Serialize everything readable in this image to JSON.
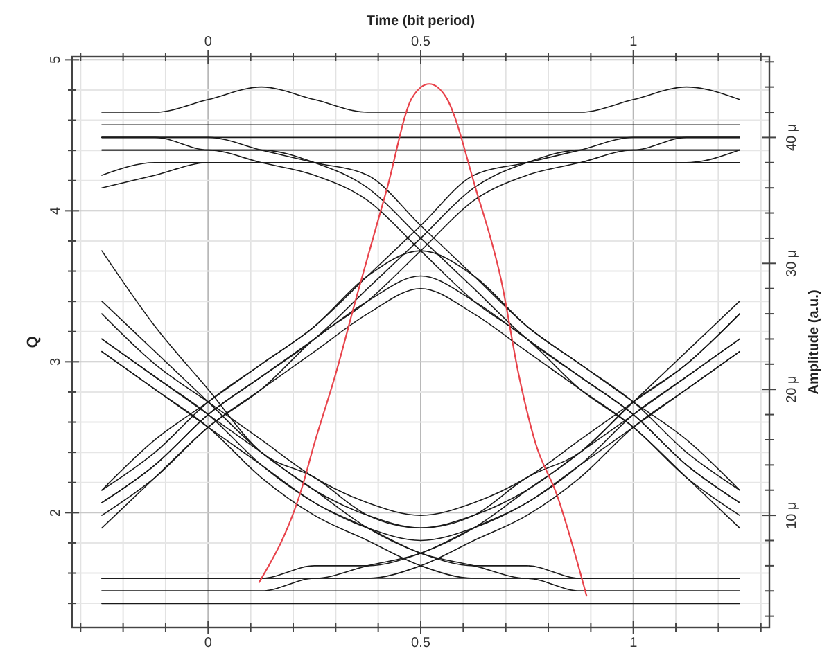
{
  "chart_data": {
    "type": "line",
    "x2label": "Time (bit period)",
    "ylabel": "Q",
    "y2label": "Amplitude (a.u.)",
    "xlim": [
      -0.32,
      1.32
    ],
    "xticks": [
      {
        "value": -0.3,
        "label": null
      },
      {
        "value": -0.2,
        "label": null
      },
      {
        "value": -0.1,
        "label": null
      },
      0,
      {
        "value": 0.1,
        "label": null
      },
      {
        "value": 0.2,
        "label": null
      },
      {
        "value": 0.3,
        "label": null
      },
      {
        "value": 0.4,
        "label": null
      },
      0.5,
      {
        "value": 0.6,
        "label": null
      },
      {
        "value": 0.7,
        "label": null
      },
      {
        "value": 0.8,
        "label": null
      },
      {
        "value": 0.9,
        "label": null
      },
      1,
      {
        "value": 1.1,
        "label": null
      },
      {
        "value": 1.2,
        "label": null
      },
      {
        "value": 1.3,
        "label": null
      }
    ],
    "x2lim": [
      -0.32,
      1.32
    ],
    "x2ticks": [
      {
        "value": -0.3,
        "label": null
      },
      {
        "value": -0.2,
        "label": null
      },
      {
        "value": -0.1,
        "label": null
      },
      0,
      {
        "value": 0.1,
        "label": null
      },
      {
        "value": 0.2,
        "label": null
      },
      {
        "value": 0.3,
        "label": null
      },
      {
        "value": 0.4,
        "label": null
      },
      0.5,
      {
        "value": 0.6,
        "label": null
      },
      {
        "value": 0.7,
        "label": null
      },
      {
        "value": 0.8,
        "label": null
      },
      {
        "value": 0.9,
        "label": null
      },
      1,
      {
        "value": 1.1,
        "label": null
      },
      {
        "value": 1.2,
        "label": null
      },
      {
        "value": 1.3,
        "label": null
      }
    ],
    "ylim": [
      1.24,
      5.02
    ],
    "yticks": [
      {
        "value": 1.4,
        "label": null
      },
      {
        "value": 1.6,
        "label": null
      },
      {
        "value": 1.8,
        "label": null
      },
      2,
      {
        "value": 2.2,
        "label": null
      },
      {
        "value": 2.4,
        "label": null
      },
      {
        "value": 2.6,
        "label": null
      },
      {
        "value": 2.8,
        "label": null
      },
      3,
      {
        "value": 3.2,
        "label": null
      },
      {
        "value": 3.4,
        "label": null
      },
      {
        "value": 3.6,
        "label": null
      },
      {
        "value": 3.8,
        "label": null
      },
      4,
      {
        "value": 4.2,
        "label": null
      },
      {
        "value": 4.4,
        "label": null
      },
      {
        "value": 4.6,
        "label": null
      },
      {
        "value": 4.8,
        "label": null
      },
      5
    ],
    "y2lim": [
      1.1,
      46.4
    ],
    "y2ticks": [
      {
        "value": 2,
        "label": null
      },
      {
        "value": 4,
        "label": null
      },
      {
        "value": 6,
        "label": null
      },
      {
        "value": 8,
        "label": null
      },
      {
        "value": 10,
        "label": "10 μ"
      },
      {
        "value": 12,
        "label": null
      },
      {
        "value": 14,
        "label": null
      },
      {
        "value": 16,
        "label": null
      },
      {
        "value": 18,
        "label": null
      },
      {
        "value": 20,
        "label": "20 μ"
      },
      {
        "value": 22,
        "label": null
      },
      {
        "value": 24,
        "label": null
      },
      {
        "value": 26,
        "label": null
      },
      {
        "value": 28,
        "label": null
      },
      {
        "value": 30,
        "label": "30 μ"
      },
      {
        "value": 32,
        "label": null
      },
      {
        "value": 34,
        "label": null
      },
      {
        "value": 36,
        "label": null
      },
      {
        "value": 38,
        "label": null
      },
      {
        "value": 40,
        "label": "40 μ"
      },
      {
        "value": 42,
        "label": null
      },
      {
        "value": 44,
        "label": null
      },
      {
        "value": 46,
        "label": null
      }
    ],
    "grid": true,
    "x": [
      -0.25,
      -0.125,
      0,
      0.125,
      0.25,
      0.375,
      0.5,
      0.625,
      0.75,
      0.875,
      1,
      1.125,
      1.25
    ],
    "series": [
      {
        "color": "#1a1a1a",
        "axis": "y2",
        "values": [
          40,
          40,
          40,
          40,
          40,
          40,
          40,
          40,
          40,
          40,
          40,
          40,
          40
        ]
      },
      {
        "color": "#1a1a1a",
        "axis": "y2",
        "values": [
          39,
          39,
          39,
          39,
          39,
          39,
          39,
          39,
          39,
          39,
          39,
          39,
          39
        ]
      },
      {
        "color": "#1a1a1a",
        "axis": "y2",
        "values": [
          41,
          41,
          41,
          41,
          41,
          41,
          41,
          41,
          41,
          41,
          41,
          41,
          41
        ]
      },
      {
        "color": "#1a1a1a",
        "axis": "y2",
        "values": [
          37,
          38,
          38,
          38,
          38,
          38,
          38,
          38,
          38,
          38,
          38,
          38,
          39
        ]
      },
      {
        "color": "#1a1a1a",
        "axis": "y2",
        "values": [
          36,
          37,
          38,
          38,
          38,
          38,
          38,
          38,
          38,
          38,
          38,
          38,
          38
        ]
      },
      {
        "color": "#1a1a1a",
        "axis": "y2",
        "values": [
          42,
          42,
          43,
          44,
          43,
          42,
          42,
          42,
          42,
          42,
          43,
          44,
          43
        ]
      },
      {
        "color": "#1a1a1a",
        "axis": "y2",
        "values": [
          4,
          4,
          4,
          4,
          4,
          4,
          4,
          4,
          4,
          4,
          4,
          4,
          4
        ]
      },
      {
        "color": "#1a1a1a",
        "axis": "y2",
        "values": [
          3,
          3,
          3,
          3,
          3,
          3,
          3,
          3,
          3,
          3,
          3,
          3,
          3
        ]
      },
      {
        "color": "#1a1a1a",
        "axis": "y2",
        "values": [
          5,
          5,
          5,
          5,
          5,
          5,
          5,
          5,
          5,
          5,
          5,
          5,
          5
        ]
      },
      {
        "color": "#1a1a1a",
        "axis": "y2",
        "values": [
          11,
          14,
          18,
          21,
          24,
          28,
          32,
          36,
          38,
          39,
          39,
          40,
          40
        ]
      },
      {
        "color": "#1a1a1a",
        "axis": "y2",
        "values": [
          9,
          13,
          17,
          20,
          24,
          27,
          31,
          35,
          37,
          38,
          39,
          39,
          39
        ]
      },
      {
        "color": "#1a1a1a",
        "axis": "y2",
        "values": [
          12,
          16,
          19,
          22,
          25,
          29,
          33,
          37,
          38,
          39,
          40,
          40,
          40
        ]
      },
      {
        "color": "#1a1a1a",
        "axis": "y2",
        "values": [
          40,
          40,
          39,
          39,
          38,
          36,
          32,
          28,
          24,
          21,
          18,
          14,
          11
        ]
      },
      {
        "color": "#1a1a1a",
        "axis": "y2",
        "values": [
          39,
          39,
          39,
          38,
          37,
          35,
          31,
          27,
          24,
          20,
          17,
          13,
          9
        ]
      },
      {
        "color": "#1a1a1a",
        "axis": "y2",
        "values": [
          40,
          40,
          40,
          39,
          38,
          37,
          33,
          29,
          25,
          22,
          19,
          16,
          12
        ]
      },
      {
        "color": "#1a1a1a",
        "axis": "y2",
        "values": [
          11,
          14,
          18,
          21,
          24,
          27,
          29,
          27,
          24,
          21,
          18,
          14,
          11
        ]
      },
      {
        "color": "#1a1a1a",
        "axis": "y2",
        "values": [
          12,
          15,
          19,
          22,
          25,
          29,
          31,
          29,
          25,
          22,
          19,
          15,
          12
        ]
      },
      {
        "color": "#1a1a1a",
        "axis": "y2",
        "values": [
          10,
          13,
          17,
          20,
          23,
          26,
          28,
          26,
          23,
          20,
          17,
          13,
          10
        ]
      },
      {
        "color": "#1a1a1a",
        "axis": "y2",
        "values": [
          24,
          21,
          18,
          15,
          12,
          10,
          9,
          10,
          12,
          15,
          18,
          21,
          24
        ]
      },
      {
        "color": "#1a1a1a",
        "axis": "y2",
        "values": [
          26,
          22,
          19,
          16,
          13,
          11,
          10,
          11,
          13,
          16,
          19,
          22,
          26
        ]
      },
      {
        "color": "#1a1a1a",
        "axis": "y2",
        "values": [
          23,
          20,
          17,
          14,
          11,
          9,
          8,
          9,
          11,
          14,
          17,
          20,
          23
        ]
      },
      {
        "color": "#1a1a1a",
        "axis": "y2",
        "values": [
          24,
          21,
          18,
          14,
          11,
          9,
          7,
          6,
          5,
          5,
          5,
          5,
          5
        ]
      },
      {
        "color": "#1a1a1a",
        "axis": "y2",
        "values": [
          27,
          23,
          19,
          15,
          12,
          9,
          7,
          6,
          6,
          5,
          5,
          5,
          5
        ]
      },
      {
        "color": "#1a1a1a",
        "axis": "y2",
        "values": [
          23,
          20,
          17,
          13,
          10,
          8,
          6,
          5,
          5,
          4,
          4,
          4,
          4
        ]
      },
      {
        "color": "#1a1a1a",
        "axis": "y2",
        "values": [
          5,
          5,
          5,
          5,
          5,
          6,
          7,
          9,
          11,
          14,
          18,
          21,
          24
        ]
      },
      {
        "color": "#1a1a1a",
        "axis": "y2",
        "values": [
          5,
          5,
          5,
          5,
          6,
          6,
          7,
          9,
          12,
          15,
          19,
          23,
          27
        ]
      },
      {
        "color": "#1a1a1a",
        "axis": "y2",
        "values": [
          4,
          4,
          4,
          4,
          5,
          5,
          6,
          8,
          10,
          13,
          17,
          20,
          23
        ]
      },
      {
        "color": "#1a1a1a",
        "axis": "y2",
        "values": [
          31,
          25,
          20,
          15,
          13,
          10,
          9,
          10,
          13,
          15,
          19,
          22,
          26
        ]
      },
      {
        "color": "#e8434b",
        "x": [
          0.12,
          0.22,
          0.25,
          0.3,
          0.35,
          0.42,
          0.48,
          0.52,
          0.56,
          0.63,
          0.69,
          0.73,
          0.77,
          0.82,
          0.89
        ],
        "values": [
          1.54,
          2.16,
          2.46,
          2.92,
          3.44,
          4.14,
          4.75,
          4.84,
          4.75,
          4.14,
          3.53,
          2.92,
          2.46,
          2.12,
          1.45
        ]
      }
    ]
  }
}
